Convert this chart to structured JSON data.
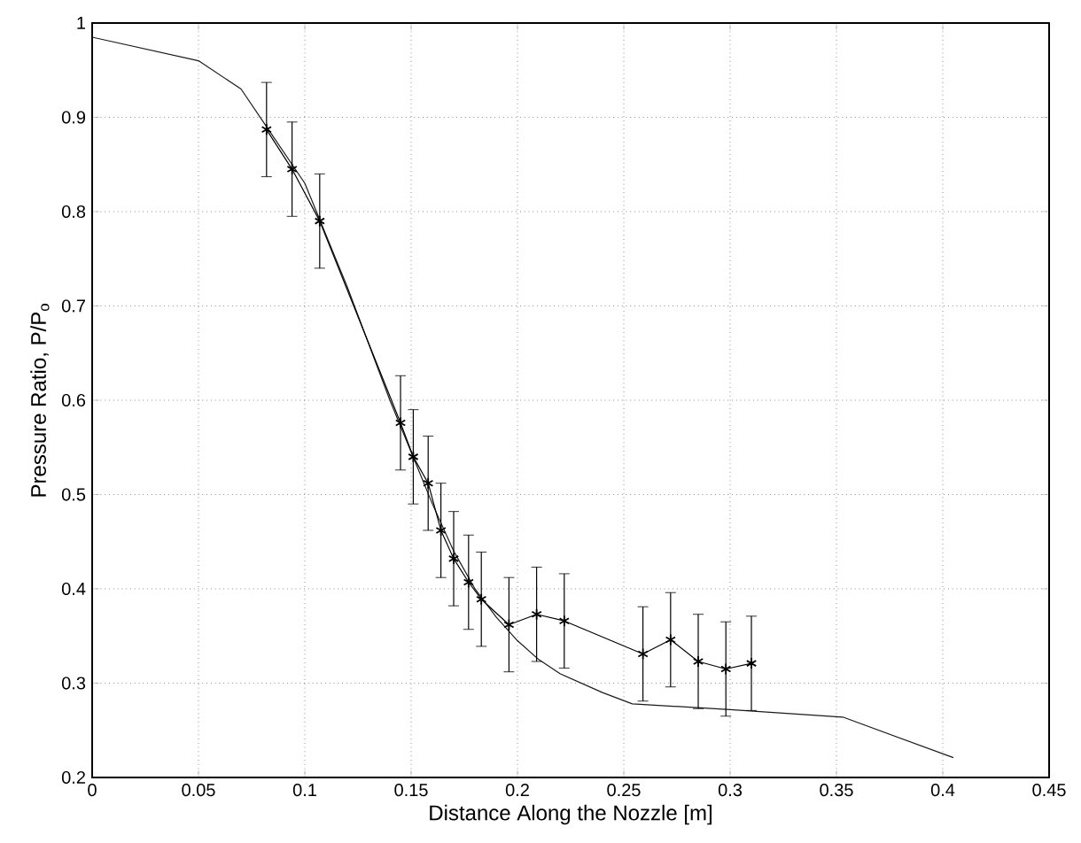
{
  "chart_data": {
    "type": "line",
    "xlabel": "Distance Along the Nozzle [m]",
    "ylabel": "Pressure Ratio, P/P$_{o}$",
    "xlim": [
      0,
      0.45
    ],
    "ylim": [
      0.2,
      1
    ],
    "xticks": [
      0,
      0.05,
      0.1,
      0.15,
      0.2,
      0.25,
      0.3,
      0.35,
      0.4,
      0.45
    ],
    "yticks": [
      0.2,
      0.3,
      0.4,
      0.5,
      0.6,
      0.7,
      0.8,
      0.9,
      1
    ],
    "grid": true,
    "line_style": "solid",
    "series": [
      {
        "color": "#1a1a1a",
        "marker": "none",
        "x": [
          0,
          0.05,
          0.07,
          0.082,
          0.1,
          0.12,
          0.14,
          0.15,
          0.16,
          0.17,
          0.18,
          0.19,
          0.2,
          0.21,
          0.22,
          0.24,
          0.254,
          0.3,
          0.353,
          0.405
        ],
        "values": [
          0.985,
          0.96,
          0.93,
          0.89,
          0.83,
          0.72,
          0.6,
          0.545,
          0.49,
          0.44,
          0.4,
          0.37,
          0.345,
          0.325,
          0.31,
          0.29,
          0.278,
          0.272,
          0.264,
          0.221
        ]
      },
      {
        "color": "#000000",
        "marker": "cross",
        "x": [
          0.082,
          0.094,
          0.107,
          0.145,
          0.151,
          0.158,
          0.164,
          0.17,
          0.177,
          0.183,
          0.196,
          0.209,
          0.222,
          0.259,
          0.272,
          0.285,
          0.298,
          0.31
        ],
        "values": [
          0.887,
          0.845,
          0.79,
          0.576,
          0.54,
          0.512,
          0.462,
          0.432,
          0.407,
          0.389,
          0.362,
          0.373,
          0.366,
          0.331,
          0.346,
          0.323,
          0.315,
          0.321
        ],
        "errors": [
          0.05,
          0.05,
          0.05,
          0.05,
          0.05,
          0.05,
          0.05,
          0.05,
          0.05,
          0.05,
          0.05,
          0.05,
          0.05,
          0.05,
          0.05,
          0.05,
          0.05,
          0.05
        ]
      }
    ]
  }
}
